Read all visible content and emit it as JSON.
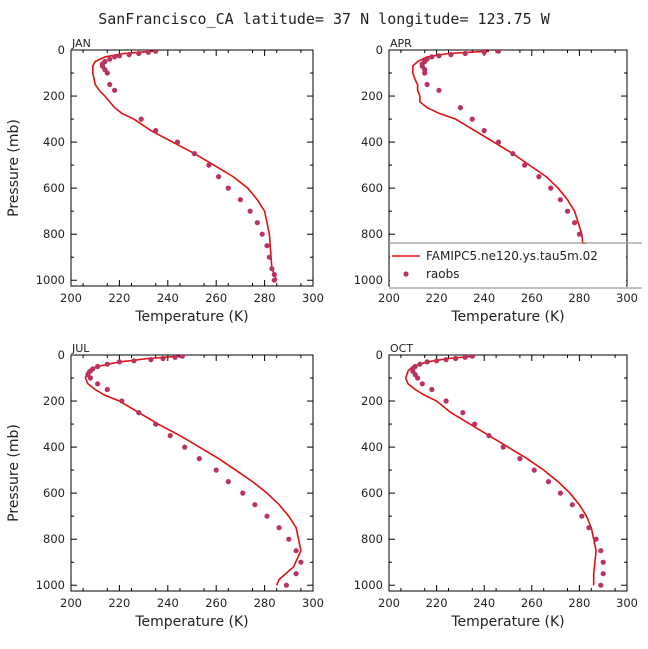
{
  "figure": {
    "title": "SanFrancisco_CA  latitude= 37 N longitude= 123.75 W"
  },
  "colors": {
    "model_line": "#e01010",
    "obs_marker": "#b8335f"
  },
  "chart_data": [
    {
      "type": "line",
      "panel": "JAN",
      "xlabel": "Temperature (K)",
      "ylabel": "Pressure (mb)",
      "xlim": [
        200,
        300
      ],
      "ylim": [
        1025,
        0
      ],
      "xticks": [
        200,
        220,
        240,
        260,
        280,
        300
      ],
      "yticks": [
        0,
        200,
        400,
        600,
        800,
        1000
      ],
      "series": [
        {
          "name": "FAMIPC5.ne120.ys.tau5m.02",
          "kind": "line",
          "x": [
            234,
            222,
            214,
            210,
            209,
            209,
            210,
            212,
            214,
            216,
            218,
            221,
            226,
            233,
            242,
            251,
            259,
            267,
            273,
            277,
            280,
            282,
            283,
            285
          ],
          "y": [
            5,
            15,
            30,
            50,
            70,
            100,
            150,
            180,
            200,
            225,
            250,
            275,
            300,
            350,
            400,
            450,
            500,
            550,
            600,
            650,
            700,
            800,
            950,
            1000
          ]
        },
        {
          "name": "raobs",
          "kind": "scatter",
          "x": [
            235,
            232,
            228,
            224,
            220,
            218,
            216,
            214,
            213,
            213,
            214,
            215,
            216,
            218,
            229,
            235,
            244,
            251,
            257,
            261,
            265,
            270,
            274,
            277,
            279,
            281,
            282,
            283,
            284,
            284
          ],
          "y": [
            5,
            10,
            15,
            20,
            25,
            30,
            40,
            50,
            60,
            70,
            85,
            100,
            150,
            175,
            300,
            350,
            400,
            450,
            500,
            550,
            600,
            650,
            700,
            750,
            800,
            850,
            900,
            950,
            975,
            1000
          ]
        }
      ]
    },
    {
      "type": "line",
      "panel": "APR",
      "xlabel": "Temperature (K)",
      "ylabel": "",
      "xlim": [
        200,
        300
      ],
      "ylim": [
        1025,
        0
      ],
      "xticks": [
        200,
        220,
        240,
        260,
        280,
        300
      ],
      "yticks": [
        0,
        200,
        400,
        600,
        800,
        1000
      ],
      "series": [
        {
          "name": "FAMIPC5.ne120.ys.tau5m.02",
          "kind": "line",
          "x": [
            242,
            225,
            216,
            212,
            210,
            210,
            211,
            212,
            212,
            213,
            213,
            216,
            221,
            228,
            236,
            244,
            252,
            259,
            266,
            271,
            275,
            278,
            281,
            283
          ],
          "y": [
            5,
            15,
            30,
            50,
            70,
            100,
            130,
            150,
            175,
            200,
            225,
            250,
            275,
            300,
            350,
            400,
            450,
            500,
            550,
            600,
            650,
            700,
            800,
            1000
          ]
        },
        {
          "name": "raobs",
          "kind": "scatter",
          "x": [
            246,
            240,
            232,
            226,
            221,
            218,
            216,
            215,
            214,
            214,
            215,
            215,
            216,
            221,
            230,
            235,
            240,
            246,
            252,
            257,
            263,
            268,
            272,
            275,
            278,
            280,
            282,
            284,
            285,
            285
          ],
          "y": [
            5,
            10,
            15,
            20,
            25,
            30,
            40,
            50,
            60,
            70,
            85,
            100,
            150,
            175,
            250,
            300,
            350,
            400,
            450,
            500,
            550,
            600,
            650,
            700,
            750,
            800,
            850,
            900,
            950,
            1000
          ]
        }
      ]
    },
    {
      "type": "line",
      "panel": "JUL",
      "xlabel": "Temperature (K)",
      "ylabel": "Pressure (mb)",
      "xlim": [
        200,
        300
      ],
      "ylim": [
        1025,
        0
      ],
      "xticks": [
        200,
        220,
        240,
        260,
        280,
        300
      ],
      "yticks": [
        0,
        200,
        400,
        600,
        800,
        1000
      ],
      "series": [
        {
          "name": "FAMIPC5.ne120.ys.tau5m.02",
          "kind": "line",
          "x": [
            245,
            232,
            220,
            211,
            207,
            206,
            207,
            210,
            214,
            220,
            228,
            236,
            245,
            253,
            261,
            268,
            275,
            281,
            286,
            290,
            293,
            295,
            292,
            286,
            285
          ],
          "y": [
            5,
            15,
            30,
            50,
            70,
            100,
            125,
            150,
            175,
            200,
            250,
            300,
            350,
            400,
            450,
            500,
            550,
            600,
            650,
            700,
            750,
            850,
            920,
            975,
            1000
          ]
        },
        {
          "name": "raobs",
          "kind": "scatter",
          "x": [
            246,
            243,
            238,
            233,
            226,
            220,
            215,
            211,
            209,
            208,
            207,
            208,
            211,
            215,
            221,
            228,
            235,
            241,
            247,
            253,
            260,
            265,
            271,
            276,
            281,
            286,
            290,
            293,
            295,
            293,
            289
          ],
          "y": [
            5,
            10,
            15,
            20,
            25,
            30,
            40,
            50,
            60,
            70,
            85,
            100,
            125,
            150,
            200,
            250,
            300,
            350,
            400,
            450,
            500,
            550,
            600,
            650,
            700,
            750,
            800,
            850,
            900,
            950,
            1000
          ]
        }
      ]
    },
    {
      "type": "line",
      "panel": "OCT",
      "xlabel": "Temperature (K)",
      "ylabel": "",
      "xlim": [
        200,
        300
      ],
      "ylim": [
        1025,
        0
      ],
      "xticks": [
        200,
        220,
        240,
        260,
        280,
        300
      ],
      "yticks": [
        0,
        200,
        400,
        600,
        800,
        1000
      ],
      "series": [
        {
          "name": "FAMIPC5.ne120.ys.tau5m.02",
          "kind": "line",
          "x": [
            236,
            225,
            216,
            210,
            208,
            207,
            208,
            211,
            215,
            220,
            226,
            234,
            242,
            250,
            258,
            265,
            271,
            276,
            280,
            283,
            285,
            287,
            286,
            286
          ],
          "y": [
            5,
            15,
            30,
            50,
            70,
            100,
            125,
            150,
            175,
            200,
            250,
            300,
            350,
            400,
            450,
            500,
            550,
            600,
            650,
            700,
            750,
            850,
            950,
            1000
          ]
        },
        {
          "name": "raobs",
          "kind": "scatter",
          "x": [
            235,
            232,
            228,
            224,
            220,
            216,
            213,
            211,
            210,
            210,
            211,
            212,
            214,
            218,
            224,
            231,
            236,
            242,
            248,
            255,
            261,
            267,
            272,
            277,
            281,
            284,
            287,
            289,
            290,
            290,
            289
          ],
          "y": [
            5,
            10,
            15,
            20,
            25,
            30,
            40,
            50,
            60,
            70,
            85,
            100,
            125,
            150,
            200,
            250,
            300,
            350,
            400,
            450,
            500,
            550,
            600,
            650,
            700,
            750,
            800,
            850,
            900,
            950,
            1000
          ]
        }
      ]
    }
  ],
  "legend": {
    "entries": [
      {
        "label": "FAMIPC5.ne120.ys.tau5m.02",
        "kind": "line"
      },
      {
        "label": "raobs",
        "kind": "marker"
      }
    ]
  }
}
